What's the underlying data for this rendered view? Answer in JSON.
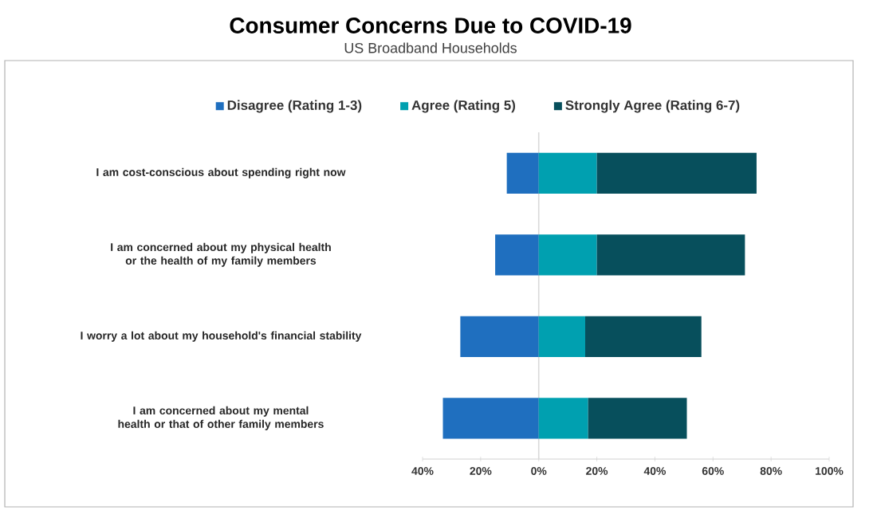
{
  "chart_data": {
    "type": "bar",
    "orientation": "horizontal",
    "stacked": true,
    "title": "Consumer Concerns Due to COVID-19",
    "subtitle": "US Broadband Households",
    "categories": [
      "I am cost-conscious about spending right now",
      "I am concerned about my physical health or the health of my family members",
      "I worry a lot about my household's financial stability",
      "I am concerned about my mental health or that of other family members"
    ],
    "series": [
      {
        "name": "Disagree (Rating 1-3)",
        "color": "#1f6fbf",
        "values": [
          -11,
          -15,
          -27,
          -33
        ]
      },
      {
        "name": "Agree (Rating 5)",
        "color": "#00a0b0",
        "values": [
          20,
          20,
          16,
          17
        ]
      },
      {
        "name": "Strongly Agree (Rating 6-7)",
        "color": "#074f5c",
        "values": [
          55,
          51,
          40,
          34
        ]
      }
    ],
    "xlim": [
      -40,
      100
    ],
    "xticks": [
      {
        "value": -40,
        "label": "40%"
      },
      {
        "value": -20,
        "label": "20%"
      },
      {
        "value": 0,
        "label": "0%"
      },
      {
        "value": 20,
        "label": "20%"
      },
      {
        "value": 40,
        "label": "40%"
      },
      {
        "value": 60,
        "label": "60%"
      },
      {
        "value": 80,
        "label": "80%"
      },
      {
        "value": 100,
        "label": "100%"
      }
    ],
    "ref_lines": [
      {
        "axis": "x",
        "value": 0,
        "color": "#d9d9d9"
      }
    ],
    "legend": "top"
  }
}
